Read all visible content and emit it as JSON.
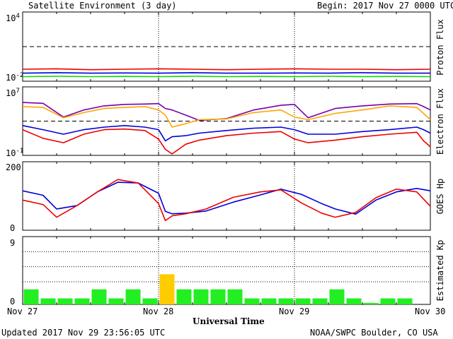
{
  "header": {
    "title": "Satellite Environment (3 day)",
    "begin": "Begin:  2017 Nov 27 0000 UTC"
  },
  "footer": {
    "updated": "Updated 2017 Nov 29 23:56:05 UTC",
    "credit": "NOAA/SWPC Boulder, CO USA",
    "xaxis_title": "Universal Time"
  },
  "colors": {
    "red": "#ee0000",
    "blue": "#0000dd",
    "green": "#00dd00",
    "purple": "#7700aa",
    "orange": "#ffa500",
    "kp_green": "#22ee22",
    "kp_yellow": "#ffcc00"
  },
  "chart_data": [
    {
      "type": "line",
      "panel": "proton",
      "ylabel": "Proton Flux",
      "yscale": "log",
      "ylim": [
        0.01,
        10000
      ],
      "ytick_labels": [
        {
          "base": "10",
          "exp": "4"
        },
        {
          "base": "10",
          "exp": "-2"
        }
      ],
      "threshold": 10,
      "x": [
        0,
        0.25,
        0.5,
        0.75,
        1,
        1.25,
        1.5,
        1.75,
        2,
        2.25,
        2.5,
        2.75,
        3
      ],
      "series": [
        {
          "color": "red",
          "values": [
            0.11,
            0.12,
            0.1,
            0.11,
            0.12,
            0.11,
            0.1,
            0.11,
            0.12,
            0.11,
            0.11,
            0.1,
            0.11
          ]
        },
        {
          "color": "blue",
          "values": [
            0.05,
            0.055,
            0.05,
            0.052,
            0.05,
            0.055,
            0.05,
            0.05,
            0.052,
            0.05,
            0.055,
            0.05,
            0.05
          ]
        },
        {
          "color": "green",
          "values": [
            0.025,
            0.027,
            0.025,
            0.026,
            0.025,
            0.027,
            0.025,
            0.026,
            0.025,
            0.027,
            0.025,
            0.026,
            0.025
          ]
        }
      ]
    },
    {
      "type": "line",
      "panel": "electron",
      "ylabel": "Electron Flux",
      "yscale": "log",
      "ylim": [
        0.1,
        10000000
      ],
      "ytick_labels": [
        {
          "base": "10",
          "exp": "7"
        },
        {
          "base": "10",
          "exp": "-1"
        }
      ],
      "threshold": 1000,
      "x": [
        0,
        0.15,
        0.3,
        0.45,
        0.6,
        0.75,
        0.9,
        1.0,
        1.05,
        1.1,
        1.2,
        1.3,
        1.5,
        1.7,
        1.9,
        2.0,
        2.1,
        2.3,
        2.5,
        2.7,
        2.9,
        2.95,
        3
      ],
      "series": [
        {
          "color": "purple",
          "values": [
            150000,
            120000,
            3000,
            20000,
            60000,
            90000,
            100000,
            110000,
            30000,
            20000,
            5000,
            1200,
            2000,
            20000,
            70000,
            90000,
            2500,
            30000,
            60000,
            100000,
            110000,
            50000,
            20000
          ]
        },
        {
          "color": "orange",
          "values": [
            50000,
            40000,
            2500,
            10000,
            30000,
            40000,
            50000,
            20000,
            5000,
            200,
            500,
            1500,
            1800,
            10000,
            20000,
            3000,
            1500,
            8000,
            20000,
            60000,
            40000,
            8000,
            1500
          ]
        },
        {
          "color": "blue",
          "values": [
            300,
            100,
            30,
            100,
            200,
            300,
            200,
            100,
            5,
            15,
            20,
            40,
            80,
            150,
            200,
            100,
            30,
            30,
            60,
            100,
            200,
            100,
            40
          ]
        },
        {
          "color": "red",
          "values": [
            100,
            10,
            3,
            30,
            100,
            120,
            80,
            8,
            0.5,
            0.15,
            2,
            6,
            20,
            40,
            60,
            8,
            3,
            6,
            15,
            30,
            50,
            5,
            1
          ]
        }
      ]
    },
    {
      "type": "line",
      "panel": "goes_hp",
      "ylabel": "GOES Hp",
      "ylim": [
        0,
        200
      ],
      "ytick_labels": [
        "200",
        "0"
      ],
      "x": [
        0,
        0.15,
        0.25,
        0.4,
        0.55,
        0.7,
        0.85,
        1.0,
        1.05,
        1.1,
        1.2,
        1.35,
        1.55,
        1.75,
        1.9,
        2.05,
        2.2,
        2.3,
        2.45,
        2.6,
        2.75,
        2.9,
        3
      ],
      "series": [
        {
          "color": "blue",
          "values": [
            115,
            102,
            62,
            72,
            112,
            140,
            138,
            108,
            55,
            48,
            50,
            56,
            82,
            103,
            120,
            105,
            78,
            62,
            47,
            88,
            112,
            122,
            115
          ]
        },
        {
          "color": "red",
          "values": [
            88,
            75,
            38,
            72,
            112,
            148,
            138,
            78,
            28,
            42,
            48,
            62,
            96,
            112,
            118,
            80,
            50,
            38,
            52,
            95,
            120,
            112,
            70
          ]
        }
      ]
    },
    {
      "type": "bar",
      "panel": "kp",
      "ylabel": "Estimated Kp",
      "ylim": [
        0,
        9
      ],
      "ytick_labels": [
        "9",
        "0"
      ],
      "values": [
        2,
        0.8,
        0.8,
        0.8,
        2,
        0.8,
        2,
        0.8,
        4,
        2,
        2,
        2,
        2,
        0.8,
        0.8,
        0.8,
        0.8,
        0.8,
        2,
        0.8,
        0.2,
        0.8,
        0.8,
        0
      ],
      "colors": [
        "kp_green",
        "kp_green",
        "kp_green",
        "kp_green",
        "kp_green",
        "kp_green",
        "kp_green",
        "kp_green",
        "kp_yellow",
        "kp_green",
        "kp_green",
        "kp_green",
        "kp_green",
        "kp_green",
        "kp_green",
        "kp_green",
        "kp_green",
        "kp_green",
        "kp_green",
        "kp_green",
        "kp_green",
        "kp_green",
        "kp_green",
        "kp_green"
      ]
    }
  ],
  "x_axis": {
    "range_days": [
      0,
      3
    ],
    "tick_labels": [
      "Nov 27",
      "Nov 28",
      "Nov 29",
      "Nov 30"
    ]
  }
}
